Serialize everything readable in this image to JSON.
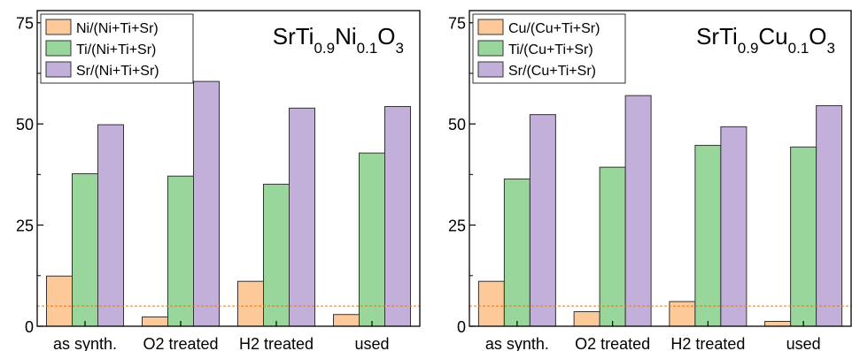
{
  "chart_data": [
    {
      "type": "bar",
      "title": {
        "base": "SrTi",
        "sub1": "0.9",
        "mid": "Ni",
        "sub2": "0.1",
        "tail": "O",
        "sub3": "3"
      },
      "categories": [
        "as synth.",
        "O2 treated",
        "H2 treated",
        "used"
      ],
      "ylim": [
        0,
        78
      ],
      "yticks": [
        "0",
        "25",
        "50",
        "75"
      ],
      "reference_line": 5,
      "reference_color": "#e07b1a",
      "series": [
        {
          "name": "Ni/(Ni+Ti+Sr)",
          "color": "#fdc999",
          "values": [
            12.4,
            2.3,
            11.1,
            2.9
          ]
        },
        {
          "name": "Ti/(Ni+Ti+Sr)",
          "color": "#98d69c",
          "values": [
            37.7,
            37.1,
            35.1,
            42.8
          ]
        },
        {
          "name": "Sr/(Ni+Ti+Sr)",
          "color": "#c2b0db",
          "values": [
            49.8,
            60.5,
            53.9,
            54.3
          ]
        }
      ]
    },
    {
      "type": "bar",
      "title": {
        "base": "SrTi",
        "sub1": "0.9",
        "mid": "Cu",
        "sub2": "0.1",
        "tail": "O",
        "sub3": "3"
      },
      "categories": [
        "as synth.",
        "O2 treated",
        "H2 treated",
        "used"
      ],
      "ylim": [
        0,
        78
      ],
      "yticks": [
        "0",
        "25",
        "50",
        "75"
      ],
      "reference_line": 5,
      "reference_color": "#e07b1a",
      "series": [
        {
          "name": "Cu/(Cu+Ti+Sr)",
          "color": "#fdc999",
          "values": [
            11.1,
            3.6,
            6.1,
            1.2
          ]
        },
        {
          "name": "Ti/(Cu+Ti+Sr)",
          "color": "#98d69c",
          "values": [
            36.4,
            39.3,
            44.7,
            44.3
          ]
        },
        {
          "name": "Sr/(Cu+Ti+Sr)",
          "color": "#c2b0db",
          "values": [
            52.3,
            57.0,
            49.3,
            54.5
          ]
        }
      ]
    }
  ]
}
